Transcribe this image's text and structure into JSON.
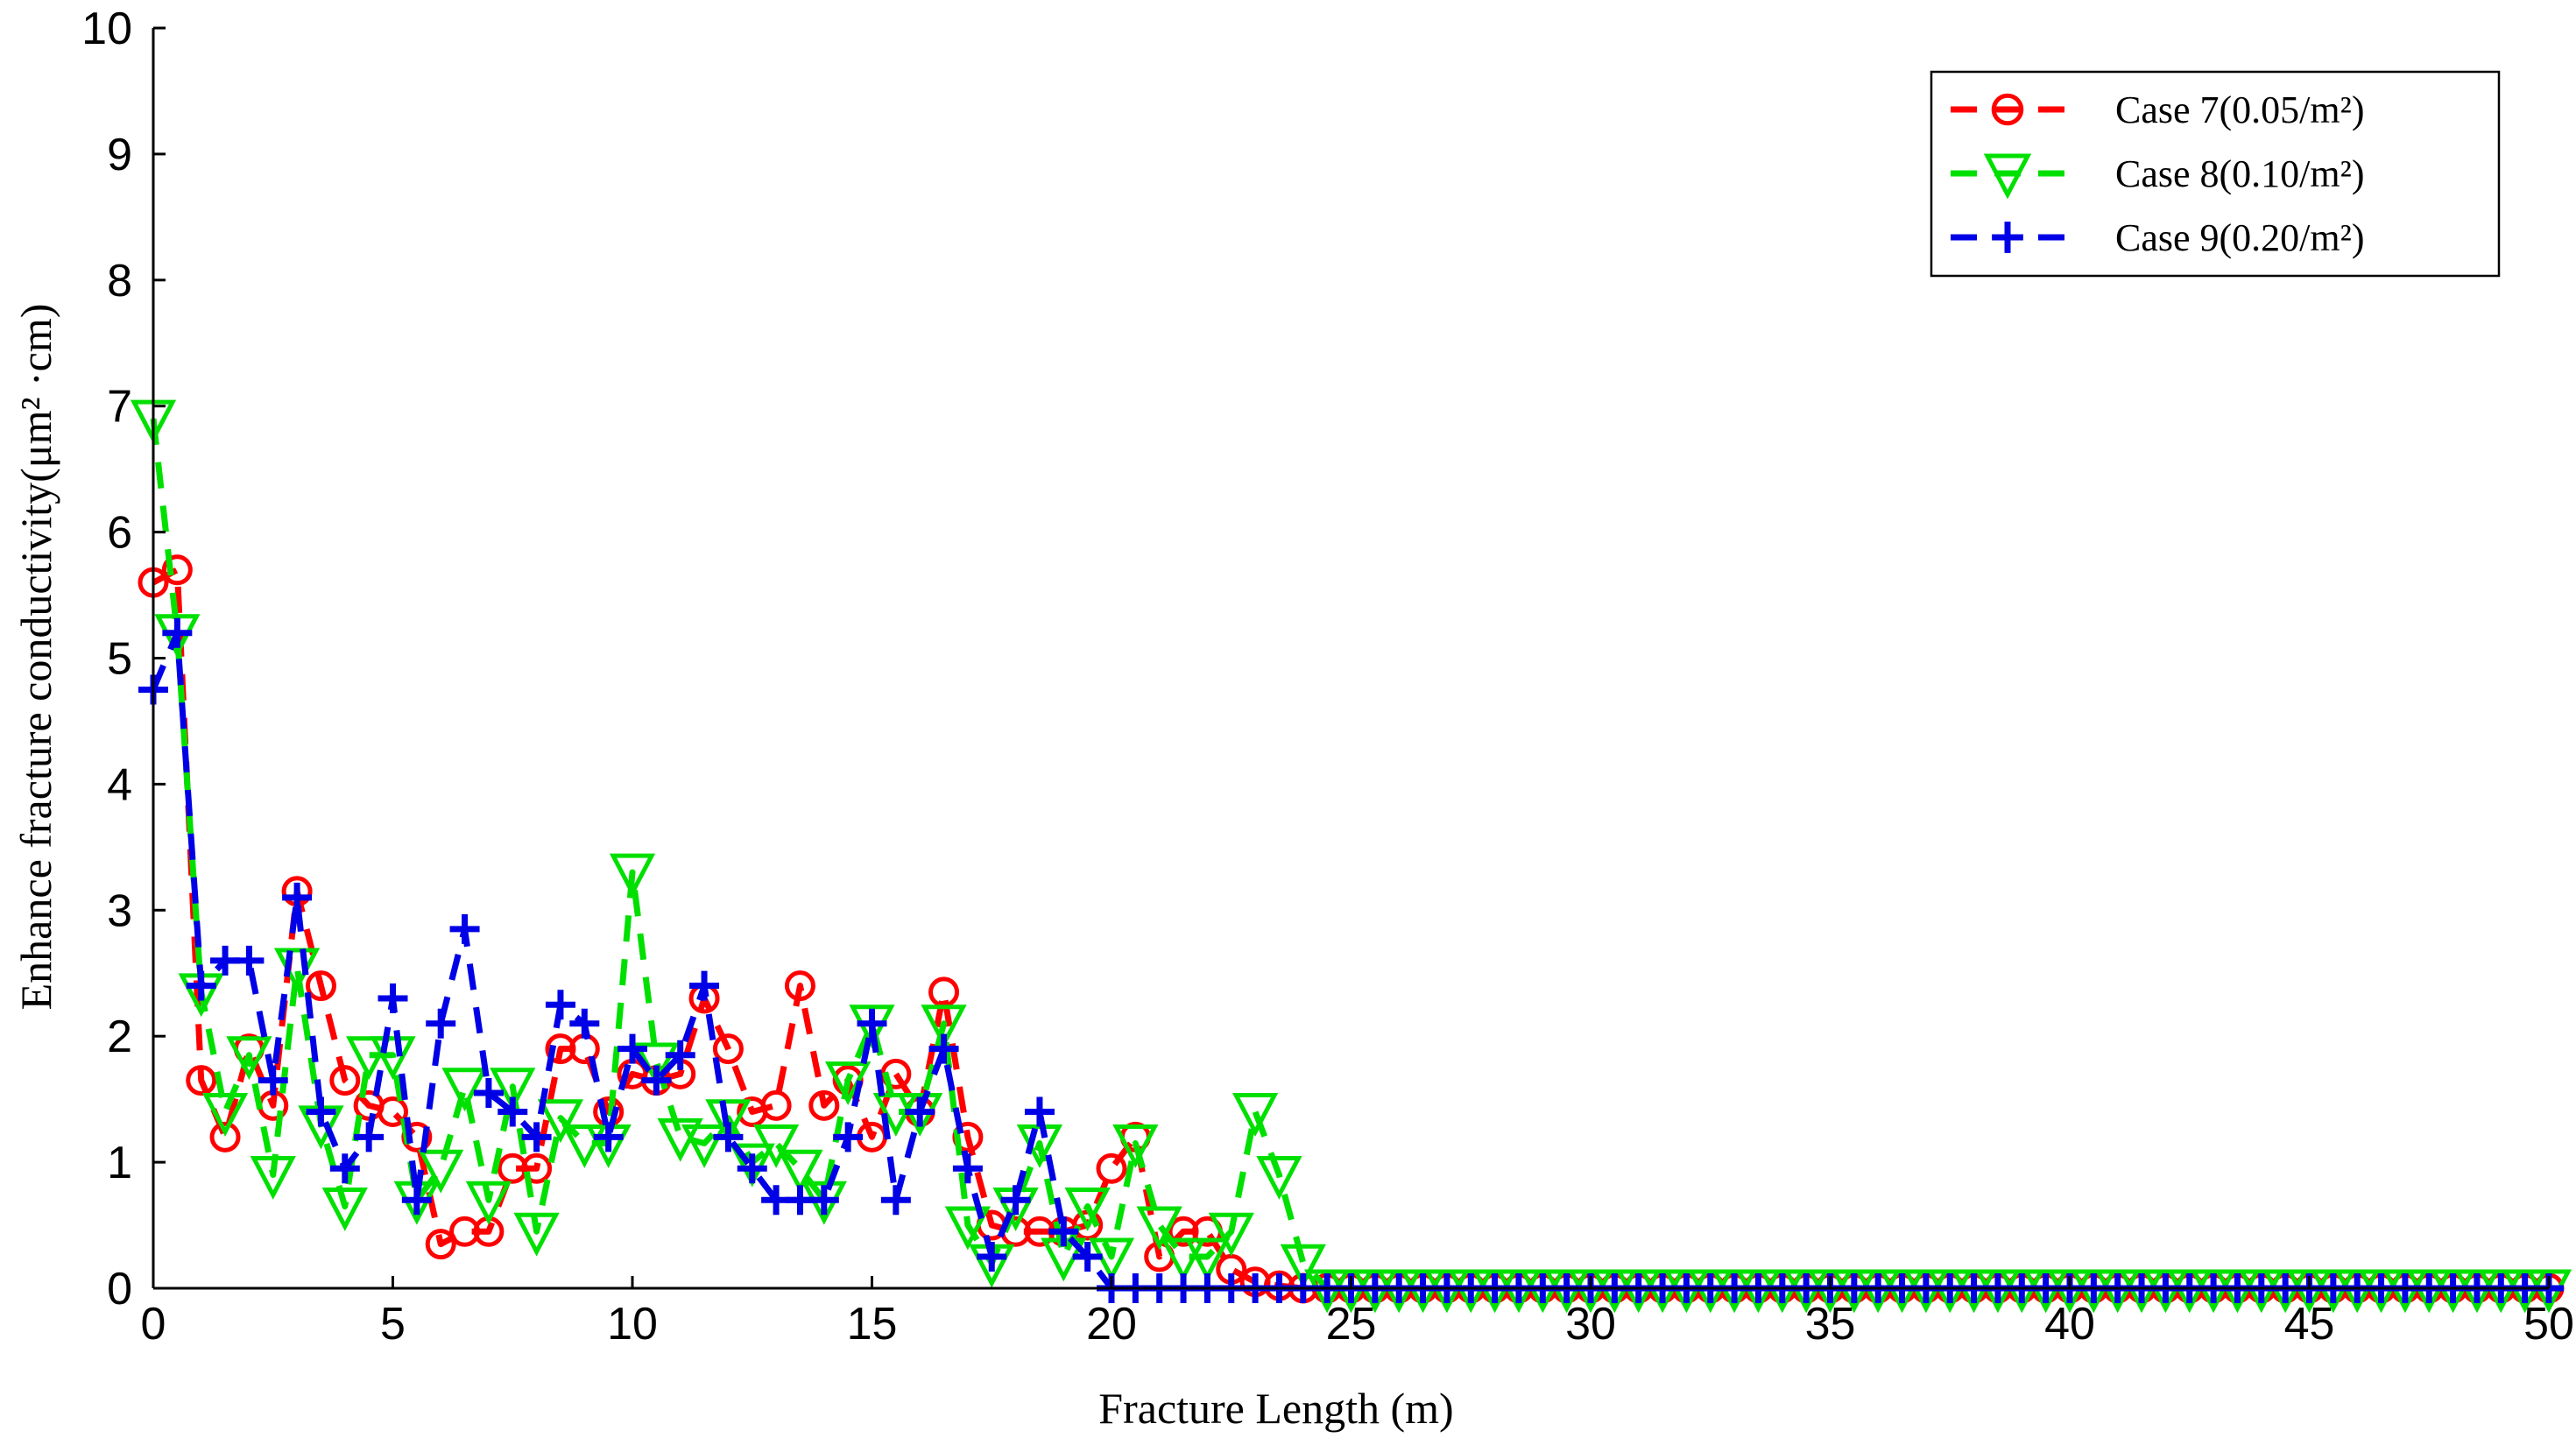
{
  "chart_data": {
    "type": "line",
    "title": "",
    "xlabel": "Fracture Length (m)",
    "ylabel": "Enhance fracture conductivity(μm² ·cm)",
    "xlim": [
      0,
      50
    ],
    "ylim": [
      0,
      10
    ],
    "xticks": [
      "0",
      "5",
      "10",
      "15",
      "20",
      "25",
      "30",
      "35",
      "40",
      "45",
      "50"
    ],
    "yticks": [
      "0",
      "1",
      "2",
      "3",
      "4",
      "5",
      "6",
      "7",
      "8",
      "9",
      "10"
    ],
    "grid": false,
    "legend_position": "top-right",
    "series": [
      {
        "name": "Case 7(0.05/m²)",
        "color": "#ff0000",
        "marker": "circle",
        "x": [
          0,
          0.5,
          1,
          1.5,
          2,
          2.5,
          3,
          3.5,
          4,
          4.5,
          5,
          5.5,
          6,
          6.5,
          7,
          7.5,
          8,
          8.5,
          9,
          9.5,
          10,
          10.5,
          11,
          11.5,
          12,
          12.5,
          13,
          13.5,
          14,
          14.5,
          15,
          15.5,
          16,
          16.5,
          17,
          17.5,
          18,
          18.5,
          19,
          19.5,
          20,
          20.5,
          21,
          21.5,
          22,
          22.5,
          23,
          23.5,
          24,
          24.5,
          25,
          25.5,
          26,
          26.5,
          27,
          27.5,
          28,
          28.5,
          29,
          29.5,
          30,
          30.5,
          31,
          31.5,
          32,
          32.5,
          33,
          33.5,
          34,
          34.5,
          35,
          35.5,
          36,
          36.5,
          37,
          37.5,
          38,
          38.5,
          39,
          39.5,
          40,
          40.5,
          41,
          41.5,
          42,
          42.5,
          43,
          43.5,
          44,
          44.5,
          45,
          45.5,
          46,
          46.5,
          47,
          47.5,
          48,
          48.5,
          49,
          49.5,
          50
        ],
        "y": [
          5.6,
          5.7,
          1.65,
          1.2,
          1.9,
          1.45,
          3.15,
          2.4,
          1.65,
          1.45,
          1.4,
          1.2,
          0.35,
          0.45,
          0.45,
          0.95,
          0.95,
          1.9,
          1.9,
          1.4,
          1.7,
          1.65,
          1.7,
          2.3,
          1.9,
          1.4,
          1.45,
          2.4,
          1.45,
          1.65,
          1.2,
          1.7,
          1.4,
          2.35,
          1.2,
          0.5,
          0.45,
          0.45,
          0.45,
          0.5,
          0.95,
          1.2,
          0.25,
          0.45,
          0.45,
          0.15,
          0.05,
          0.02,
          0,
          0,
          0,
          0,
          0,
          0,
          0,
          0,
          0,
          0,
          0,
          0,
          0,
          0,
          0,
          0,
          0,
          0,
          0,
          0,
          0,
          0,
          0,
          0,
          0,
          0,
          0,
          0,
          0,
          0,
          0,
          0,
          0,
          0,
          0,
          0,
          0,
          0,
          0,
          0,
          0,
          0,
          0,
          0,
          0,
          0,
          0,
          0,
          0,
          0,
          0,
          0,
          0
        ]
      },
      {
        "name": "Case 8(0.10/m²)",
        "color": "#00e000",
        "marker": "triangle-down",
        "x": [
          0,
          0.5,
          1,
          1.5,
          2,
          2.5,
          3,
          3.5,
          4,
          4.5,
          5,
          5.5,
          6,
          6.5,
          7,
          7.5,
          8,
          8.5,
          9,
          9.5,
          10,
          10.5,
          11,
          11.5,
          12,
          12.5,
          13,
          13.5,
          14,
          14.5,
          15,
          15.5,
          16,
          16.5,
          17,
          17.5,
          18,
          18.5,
          19,
          19.5,
          20,
          20.5,
          21,
          21.5,
          22,
          22.5,
          23,
          23.5,
          24,
          24.5,
          25,
          25.5,
          26,
          26.5,
          27,
          27.5,
          28,
          28.5,
          29,
          29.5,
          30,
          30.5,
          31,
          31.5,
          32,
          32.5,
          33,
          33.5,
          34,
          34.5,
          35,
          35.5,
          36,
          36.5,
          37,
          37.5,
          38,
          38.5,
          39,
          39.5,
          40,
          40.5,
          41,
          41.5,
          42,
          42.5,
          43,
          43.5,
          44,
          44.5,
          45,
          45.5,
          46,
          46.5,
          47,
          47.5,
          48,
          48.5,
          49,
          49.5,
          50
        ],
        "y": [
          6.9,
          5.2,
          2.35,
          1.4,
          1.85,
          0.9,
          2.55,
          1.3,
          0.65,
          1.85,
          1.85,
          0.7,
          0.95,
          1.6,
          0.7,
          1.6,
          0.45,
          1.35,
          1.15,
          1.15,
          3.3,
          1.8,
          1.2,
          1.15,
          1.35,
          1.0,
          1.15,
          0.95,
          0.7,
          1.65,
          2.1,
          1.4,
          1.4,
          2.1,
          0.5,
          0.2,
          0.65,
          1.15,
          0.25,
          0.65,
          0.25,
          1.15,
          0.5,
          0.25,
          0.25,
          0.45,
          1.4,
          0.9,
          0.2,
          0,
          0,
          0,
          0,
          0,
          0,
          0,
          0,
          0,
          0,
          0,
          0,
          0,
          0,
          0,
          0,
          0,
          0,
          0,
          0,
          0,
          0,
          0,
          0,
          0,
          0,
          0,
          0,
          0,
          0,
          0,
          0,
          0,
          0,
          0,
          0,
          0,
          0,
          0,
          0,
          0,
          0,
          0,
          0,
          0,
          0,
          0,
          0,
          0,
          0,
          0,
          0
        ]
      },
      {
        "name": "Case 9(0.20/m²)",
        "color": "#0000e6",
        "marker": "plus",
        "x": [
          0,
          0.5,
          1,
          1.5,
          2,
          2.5,
          3,
          3.5,
          4,
          4.5,
          5,
          5.5,
          6,
          6.5,
          7,
          7.5,
          8,
          8.5,
          9,
          9.5,
          10,
          10.5,
          11,
          11.5,
          12,
          12.5,
          13,
          13.5,
          14,
          14.5,
          15,
          15.5,
          16,
          16.5,
          17,
          17.5,
          18,
          18.5,
          19,
          19.5,
          20,
          20.5,
          21,
          21.5,
          22,
          22.5,
          23,
          23.5,
          24,
          24.5,
          25,
          25.5,
          26,
          26.5,
          27,
          27.5,
          28,
          28.5,
          29,
          29.5,
          30,
          30.5,
          31,
          31.5,
          32,
          32.5,
          33,
          33.5,
          34,
          34.5,
          35,
          35.5,
          36,
          36.5,
          37,
          37.5,
          38,
          38.5,
          39,
          39.5,
          40,
          40.5,
          41,
          41.5,
          42,
          42.5,
          43,
          43.5,
          44,
          44.5,
          45,
          45.5,
          46,
          46.5,
          47,
          47.5,
          48,
          48.5,
          49,
          49.5,
          50
        ],
        "y": [
          4.75,
          5.2,
          2.4,
          2.6,
          2.6,
          1.65,
          3.1,
          1.4,
          0.95,
          1.2,
          2.3,
          0.7,
          2.1,
          2.85,
          1.55,
          1.4,
          1.2,
          2.25,
          2.1,
          1.2,
          1.9,
          1.65,
          1.85,
          2.4,
          1.2,
          0.95,
          0.7,
          0.7,
          0.7,
          1.2,
          2.1,
          0.7,
          1.4,
          1.9,
          0.95,
          0.25,
          0.7,
          1.4,
          0.45,
          0.25,
          0,
          0,
          0,
          0,
          0,
          0,
          0,
          0,
          0,
          0,
          0,
          0,
          0,
          0,
          0,
          0,
          0,
          0,
          0,
          0,
          0,
          0,
          0,
          0,
          0,
          0,
          0,
          0,
          0,
          0,
          0,
          0,
          0,
          0,
          0,
          0,
          0,
          0,
          0,
          0,
          0,
          0,
          0,
          0,
          0,
          0,
          0,
          0,
          0,
          0,
          0,
          0,
          0,
          0,
          0,
          0,
          0,
          0,
          0,
          0,
          0
        ]
      }
    ]
  }
}
